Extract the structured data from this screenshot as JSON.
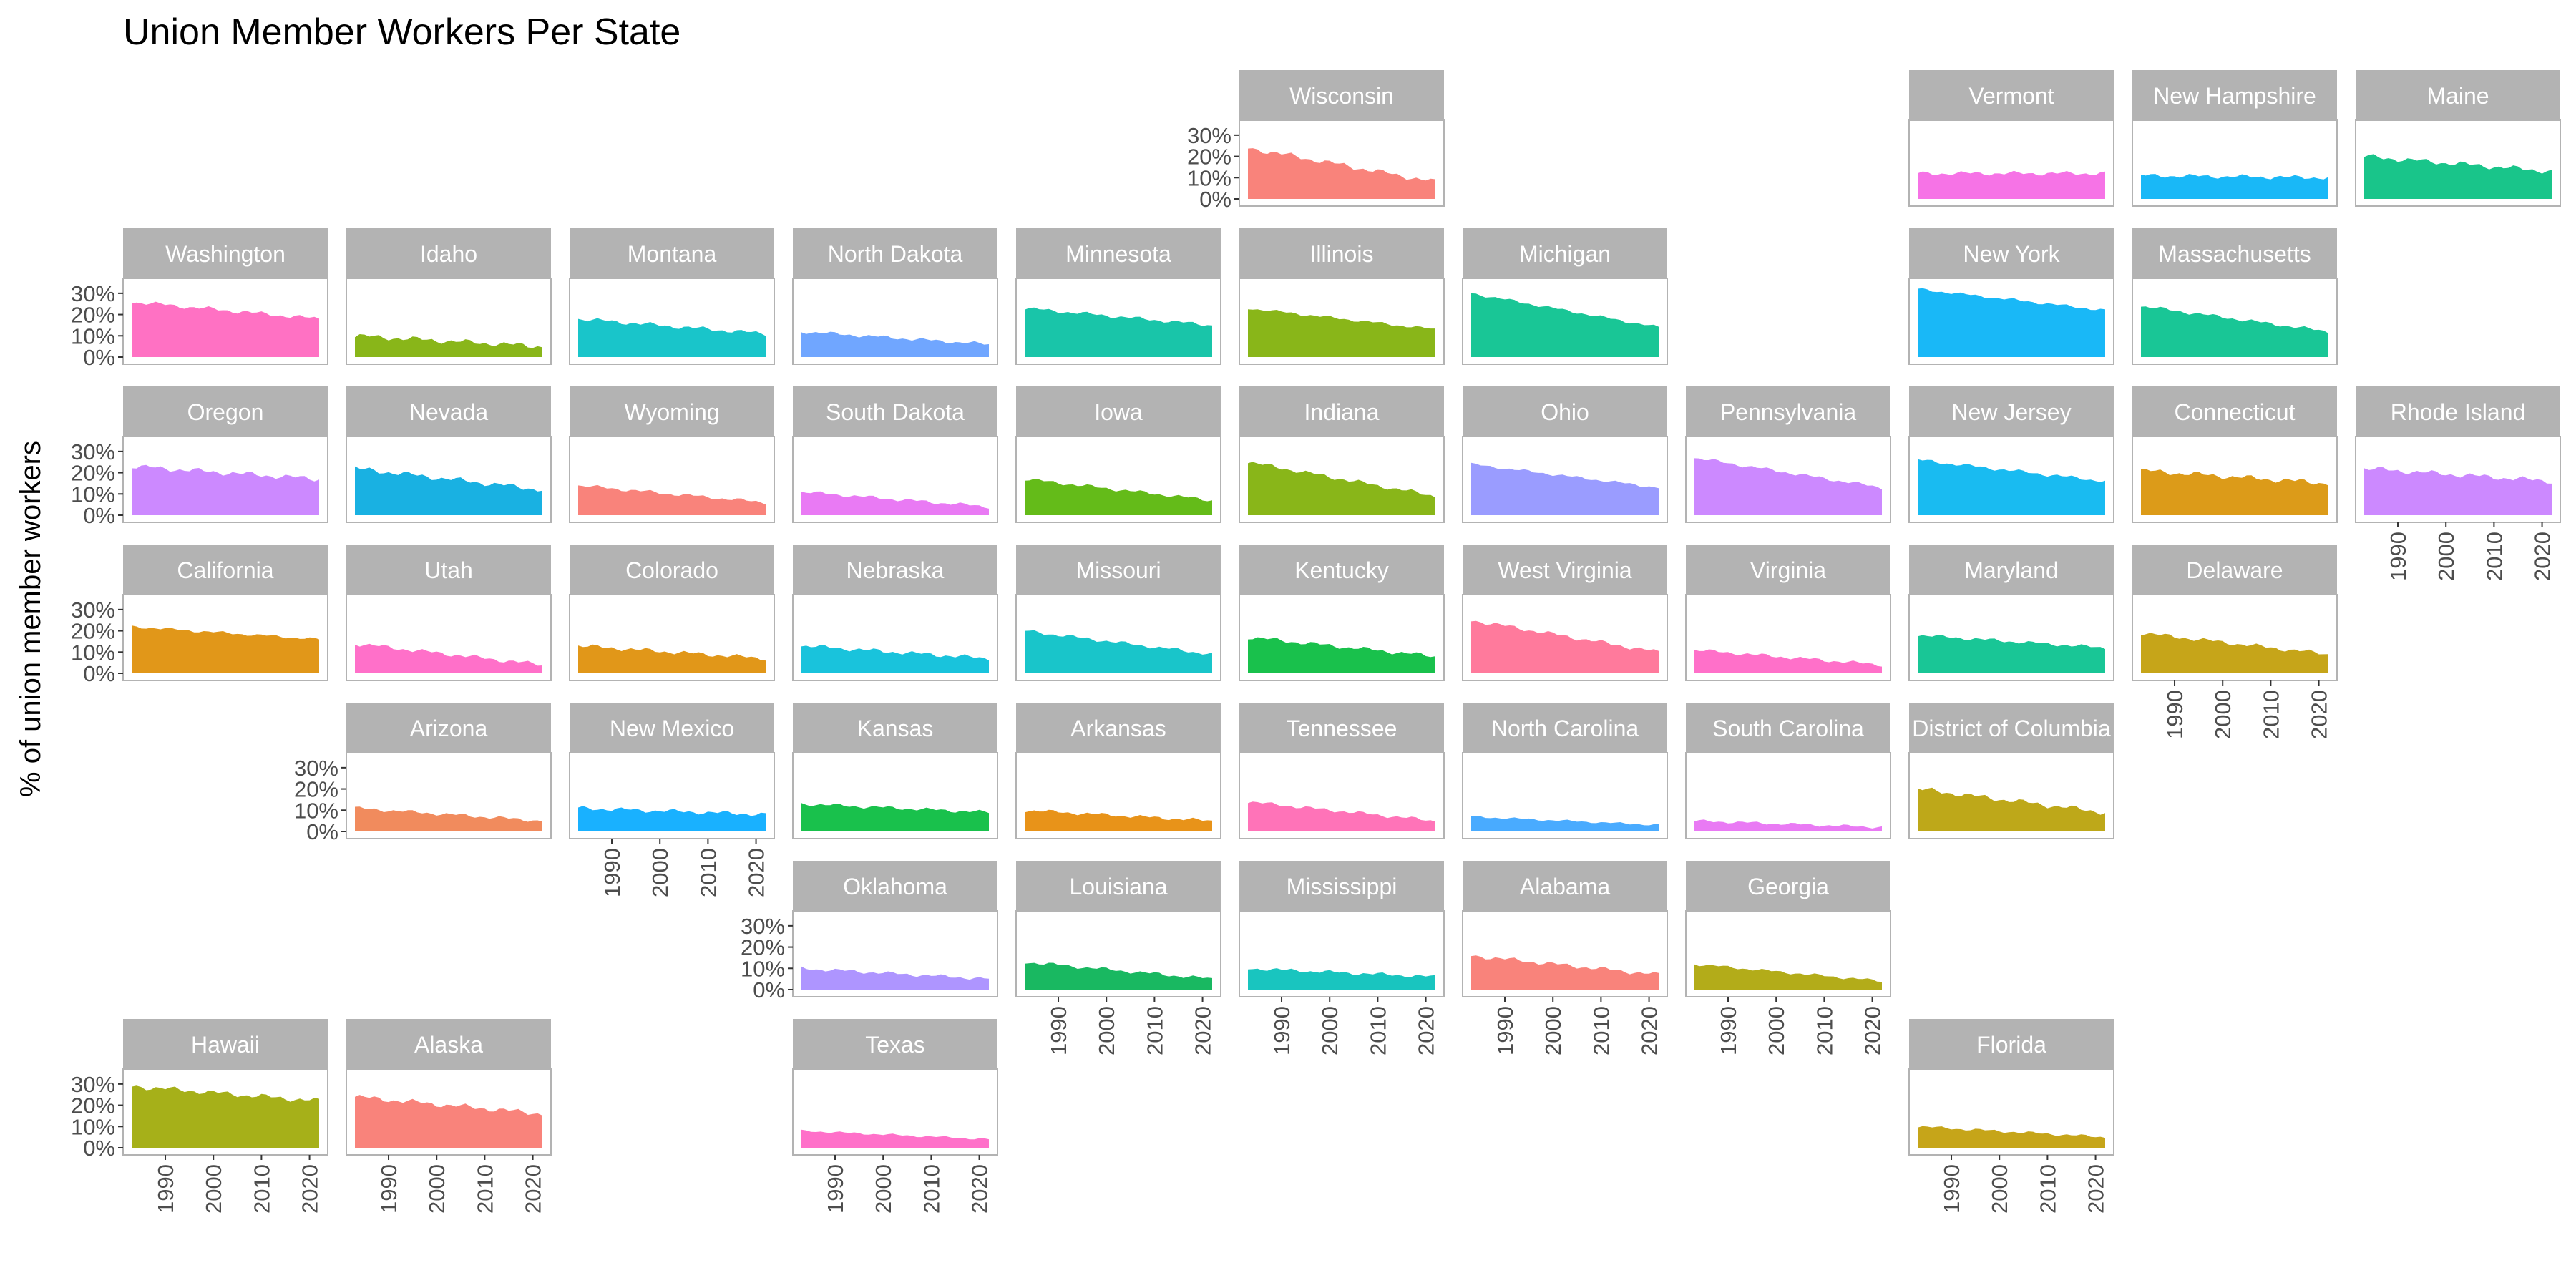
{
  "chart_data": {
    "type": "area",
    "title": "Union Member Workers Per State",
    "ylabel": "% of union member workers",
    "xlabel": "",
    "x_range": [
      1983,
      2022
    ],
    "x_ticks": [
      1990,
      2000,
      2010,
      2020
    ],
    "ylim": [
      0,
      0.35
    ],
    "y_ticks": [
      0,
      0.1,
      0.2,
      0.3
    ],
    "y_tick_labels": [
      "0%",
      "10%",
      "20%",
      "30%"
    ],
    "grid": false,
    "legend": "none",
    "panels": [
      {
        "name": "Wisconsin",
        "row": 0,
        "col": 5,
        "color": "#F8766D",
        "start": 0.24,
        "end": 0.08,
        "noise": 0.015,
        "alpha": 0.85
      },
      {
        "name": "Vermont",
        "row": 0,
        "col": 8,
        "color": "#F564E3",
        "start": 0.12,
        "end": 0.12,
        "noise": 0.012
      },
      {
        "name": "New Hampshire",
        "row": 0,
        "col": 9,
        "color": "#00B0F6",
        "start": 0.11,
        "end": 0.1,
        "noise": 0.012
      },
      {
        "name": "Maine",
        "row": 0,
        "col": 10,
        "color": "#00BF7D",
        "start": 0.2,
        "end": 0.13,
        "noise": 0.015
      },
      {
        "name": "Washington",
        "row": 1,
        "col": 0,
        "color": "#FF62BC",
        "start": 0.26,
        "end": 0.18,
        "noise": 0.012
      },
      {
        "name": "Idaho",
        "row": 1,
        "col": 1,
        "color": "#7CAE00",
        "start": 0.1,
        "end": 0.05,
        "noise": 0.015
      },
      {
        "name": "Montana",
        "row": 1,
        "col": 2,
        "color": "#00BFC4",
        "start": 0.18,
        "end": 0.11,
        "noise": 0.012
      },
      {
        "name": "North Dakota",
        "row": 1,
        "col": 3,
        "color": "#619CFF",
        "start": 0.12,
        "end": 0.06,
        "noise": 0.01
      },
      {
        "name": "Minnesota",
        "row": 1,
        "col": 4,
        "color": "#00BFA0",
        "start": 0.23,
        "end": 0.15,
        "noise": 0.01
      },
      {
        "name": "Illinois",
        "row": 1,
        "col": 5,
        "color": "#7CAE00",
        "start": 0.23,
        "end": 0.13,
        "noise": 0.008
      },
      {
        "name": "Michigan",
        "row": 1,
        "col": 6,
        "color": "#00C08B",
        "start": 0.3,
        "end": 0.14,
        "noise": 0.008
      },
      {
        "name": "New York",
        "row": 1,
        "col": 8,
        "color": "#00B0F6",
        "start": 0.32,
        "end": 0.22,
        "noise": 0.008
      },
      {
        "name": "Massachusetts",
        "row": 1,
        "col": 9,
        "color": "#00C08B",
        "start": 0.24,
        "end": 0.12,
        "noise": 0.01
      },
      {
        "name": "Oregon",
        "row": 2,
        "col": 0,
        "color": "#C77CFF",
        "start": 0.23,
        "end": 0.17,
        "noise": 0.015
      },
      {
        "name": "Nevada",
        "row": 2,
        "col": 1,
        "color": "#00A9DF",
        "start": 0.22,
        "end": 0.12,
        "noise": 0.015
      },
      {
        "name": "Wyoming",
        "row": 2,
        "col": 2,
        "color": "#F8766D",
        "start": 0.14,
        "end": 0.06,
        "noise": 0.01
      },
      {
        "name": "South Dakota",
        "row": 2,
        "col": 3,
        "color": "#E76BF3",
        "start": 0.11,
        "end": 0.04,
        "noise": 0.01
      },
      {
        "name": "Iowa",
        "row": 2,
        "col": 4,
        "color": "#53B400",
        "start": 0.17,
        "end": 0.07,
        "noise": 0.01
      },
      {
        "name": "Indiana",
        "row": 2,
        "col": 5,
        "color": "#7CAE00",
        "start": 0.25,
        "end": 0.09,
        "noise": 0.012
      },
      {
        "name": "Ohio",
        "row": 2,
        "col": 6,
        "color": "#8F91FF",
        "start": 0.24,
        "end": 0.13,
        "noise": 0.008
      },
      {
        "name": "Pennsylvania",
        "row": 2,
        "col": 7,
        "color": "#C77CFF",
        "start": 0.27,
        "end": 0.13,
        "noise": 0.01
      },
      {
        "name": "New Jersey",
        "row": 2,
        "col": 8,
        "color": "#00B4EF",
        "start": 0.26,
        "end": 0.16,
        "noise": 0.01
      },
      {
        "name": "Connecticut",
        "row": 2,
        "col": 9,
        "color": "#D89000",
        "start": 0.21,
        "end": 0.15,
        "noise": 0.015
      },
      {
        "name": "Rhode Island",
        "row": 2,
        "col": 10,
        "color": "#C77CFF",
        "start": 0.22,
        "end": 0.16,
        "noise": 0.015
      },
      {
        "name": "California",
        "row": 3,
        "col": 0,
        "color": "#DE8C00",
        "start": 0.22,
        "end": 0.16,
        "noise": 0.008
      },
      {
        "name": "Utah",
        "row": 3,
        "col": 1,
        "color": "#FF61C3",
        "start": 0.14,
        "end": 0.04,
        "noise": 0.012
      },
      {
        "name": "Colorado",
        "row": 3,
        "col": 2,
        "color": "#DE8C00",
        "start": 0.13,
        "end": 0.07,
        "noise": 0.012
      },
      {
        "name": "Nebraska",
        "row": 3,
        "col": 3,
        "color": "#00BCD8",
        "start": 0.13,
        "end": 0.07,
        "noise": 0.012
      },
      {
        "name": "Missouri",
        "row": 3,
        "col": 4,
        "color": "#00BFC4",
        "start": 0.2,
        "end": 0.09,
        "noise": 0.01
      },
      {
        "name": "Kentucky",
        "row": 3,
        "col": 5,
        "color": "#00BA38",
        "start": 0.17,
        "end": 0.08,
        "noise": 0.012
      },
      {
        "name": "West Virginia",
        "row": 3,
        "col": 6,
        "color": "#FF6C91",
        "start": 0.25,
        "end": 0.1,
        "noise": 0.012
      },
      {
        "name": "Virginia",
        "row": 3,
        "col": 7,
        "color": "#FF61C3",
        "start": 0.11,
        "end": 0.04,
        "noise": 0.01
      },
      {
        "name": "Maryland",
        "row": 3,
        "col": 8,
        "color": "#00C08B",
        "start": 0.18,
        "end": 0.12,
        "noise": 0.01
      },
      {
        "name": "Delaware",
        "row": 3,
        "col": 9,
        "color": "#C09B00",
        "start": 0.19,
        "end": 0.09,
        "noise": 0.012
      },
      {
        "name": "Arizona",
        "row": 4,
        "col": 1,
        "color": "#F07E4B",
        "start": 0.11,
        "end": 0.05,
        "noise": 0.01
      },
      {
        "name": "New Mexico",
        "row": 4,
        "col": 2,
        "color": "#00A9FF",
        "start": 0.11,
        "end": 0.08,
        "noise": 0.012
      },
      {
        "name": "Kansas",
        "row": 4,
        "col": 3,
        "color": "#00BA38",
        "start": 0.13,
        "end": 0.09,
        "noise": 0.01
      },
      {
        "name": "Arkansas",
        "row": 4,
        "col": 4,
        "color": "#E58700",
        "start": 0.1,
        "end": 0.05,
        "noise": 0.01
      },
      {
        "name": "Tennessee",
        "row": 4,
        "col": 5,
        "color": "#FF64B0",
        "start": 0.14,
        "end": 0.05,
        "noise": 0.01
      },
      {
        "name": "North Carolina",
        "row": 4,
        "col": 6,
        "color": "#35A2FF",
        "start": 0.07,
        "end": 0.03,
        "noise": 0.006
      },
      {
        "name": "South Carolina",
        "row": 4,
        "col": 7,
        "color": "#E76BF3",
        "start": 0.05,
        "end": 0.02,
        "noise": 0.008
      },
      {
        "name": "District of Columbia",
        "row": 4,
        "col": 8,
        "color": "#B79F00",
        "start": 0.2,
        "end": 0.09,
        "noise": 0.015
      },
      {
        "name": "Oklahoma",
        "row": 5,
        "col": 3,
        "color": "#A58AFF",
        "start": 0.1,
        "end": 0.05,
        "noise": 0.01
      },
      {
        "name": "Louisiana",
        "row": 5,
        "col": 4,
        "color": "#00B050",
        "start": 0.13,
        "end": 0.05,
        "noise": 0.01
      },
      {
        "name": "Mississippi",
        "row": 5,
        "col": 5,
        "color": "#00BFB8",
        "start": 0.1,
        "end": 0.06,
        "noise": 0.01
      },
      {
        "name": "Alabama",
        "row": 5,
        "col": 6,
        "color": "#F8766D",
        "start": 0.16,
        "end": 0.07,
        "noise": 0.012
      },
      {
        "name": "Georgia",
        "row": 5,
        "col": 7,
        "color": "#ABA300",
        "start": 0.12,
        "end": 0.04,
        "noise": 0.008
      },
      {
        "name": "Hawaii",
        "row": 6,
        "col": 0,
        "color": "#9CA700",
        "start": 0.29,
        "end": 0.22,
        "noise": 0.015
      },
      {
        "name": "Alaska",
        "row": 6,
        "col": 1,
        "color": "#F8766D",
        "start": 0.24,
        "end": 0.16,
        "noise": 0.015
      },
      {
        "name": "Texas",
        "row": 6,
        "col": 3,
        "color": "#FF61C3",
        "start": 0.08,
        "end": 0.04,
        "noise": 0.006
      },
      {
        "name": "Florida",
        "row": 6,
        "col": 8,
        "color": "#C09B00",
        "start": 0.1,
        "end": 0.05,
        "noise": 0.008
      }
    ],
    "y_axis_panels": [
      "Wisconsin",
      "Washington",
      "Oregon",
      "California",
      "Arizona",
      "Oklahoma",
      "Hawaii"
    ],
    "x_axis_panels": [
      "Hawaii",
      "Alaska",
      "New Mexico",
      "Texas",
      "Louisiana",
      "Mississippi",
      "Alabama",
      "Georgia",
      "Florida",
      "Delaware",
      "Rhode Island"
    ]
  }
}
